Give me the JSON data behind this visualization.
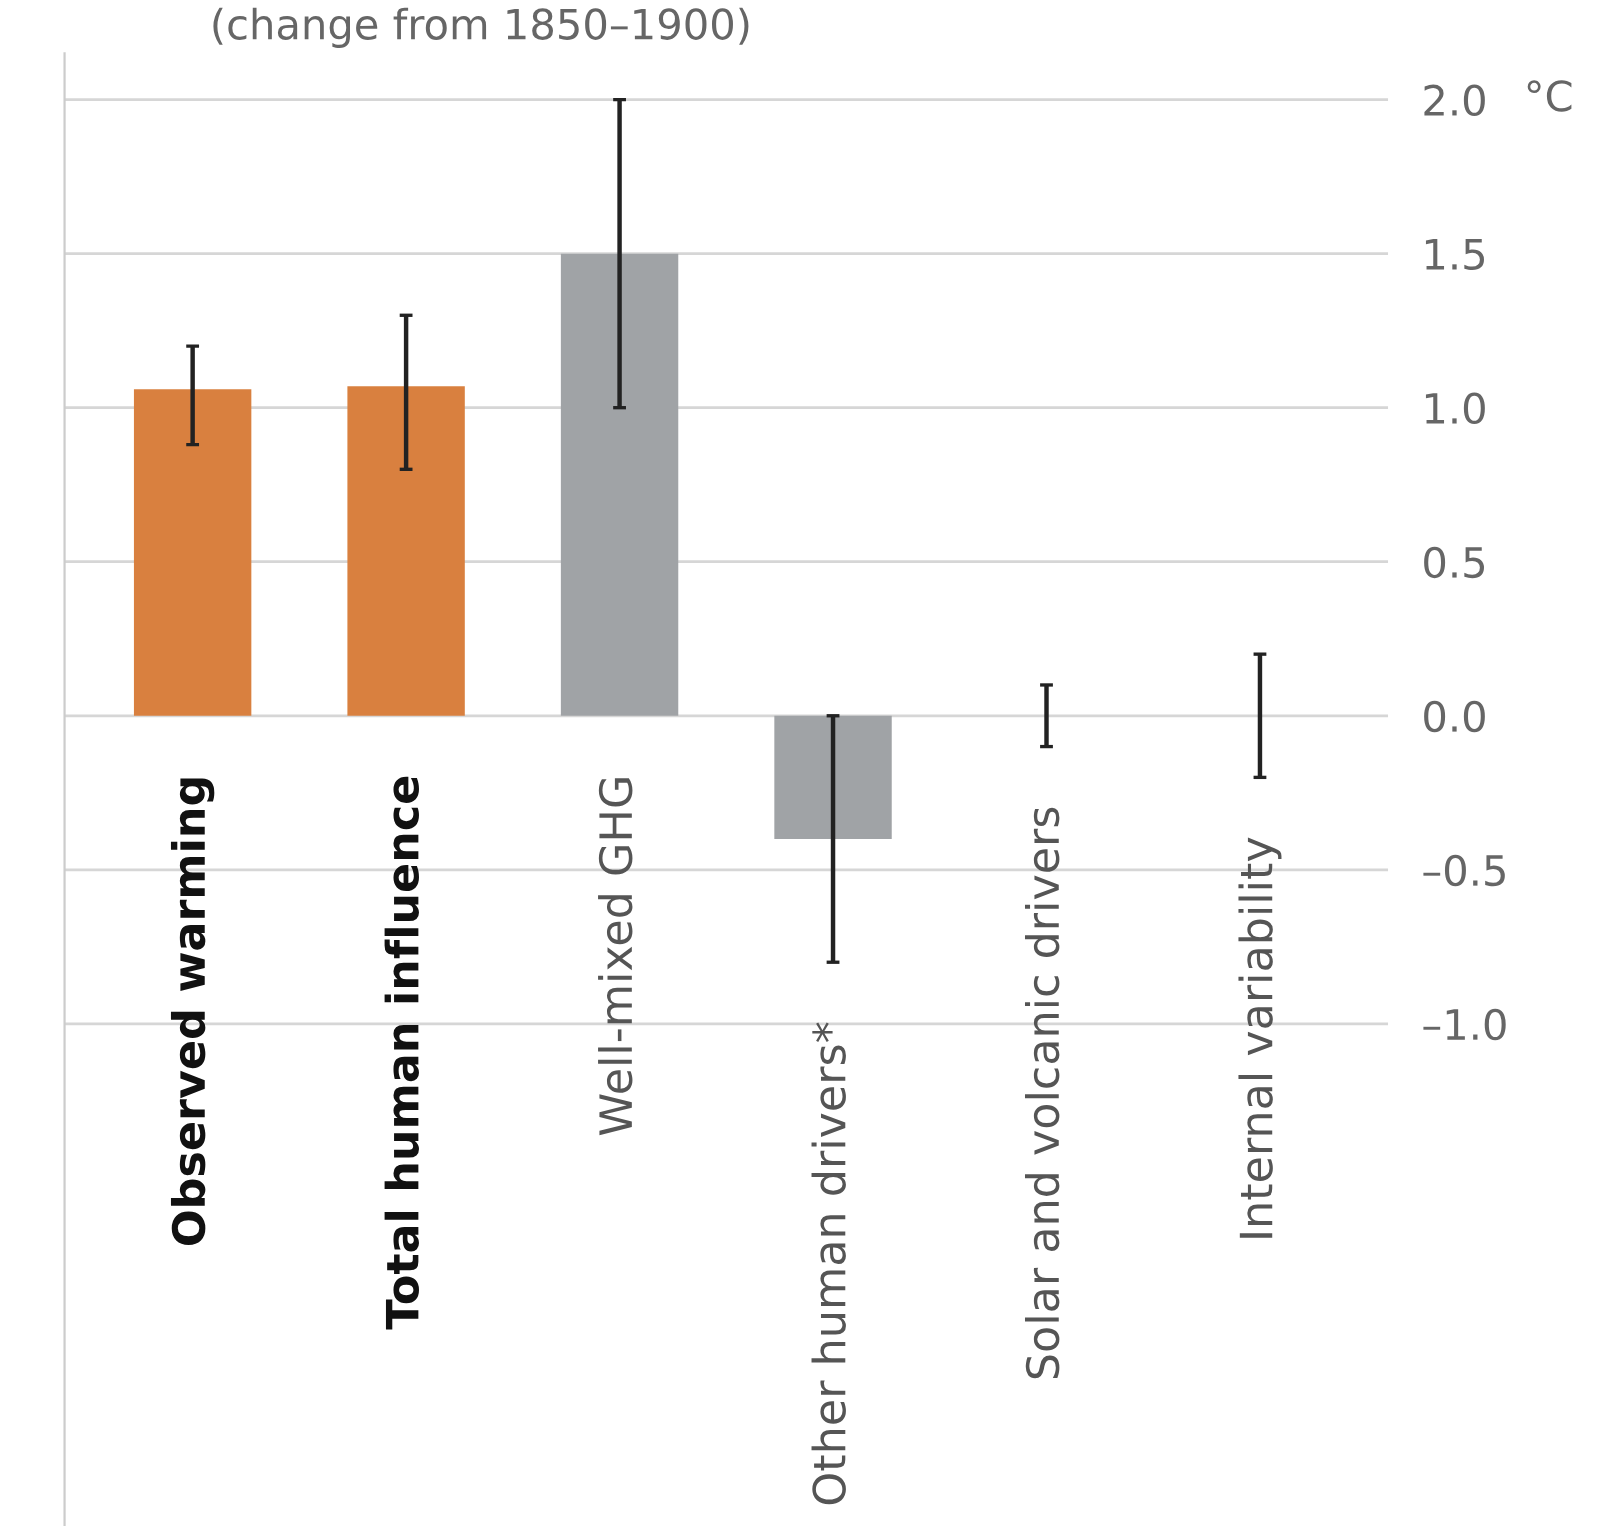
{
  "chart_data": {
    "type": "bar",
    "title": "(change from 1850–1900)",
    "ylabel": "°C",
    "categories": [
      "Observed warming",
      "Total human influence",
      "Well-mixed GHG",
      "Other human drivers*",
      "Solar and volcanic drivers",
      "Internal variability"
    ],
    "values": [
      1.06,
      1.07,
      1.5,
      -0.4,
      0.0,
      0.0
    ],
    "colors": [
      "#d9803f",
      "#d9803f",
      "#a0a3a6",
      "#a0a3a6",
      "#a0a3a6",
      "#a0a3a6"
    ],
    "errors": [
      [
        0.88,
        1.2
      ],
      [
        0.8,
        1.3
      ],
      [
        1.0,
        2.0
      ],
      [
        -0.8,
        0.0
      ],
      [
        -0.1,
        0.1
      ],
      [
        -0.2,
        0.2
      ]
    ],
    "ylim": [
      -2.63,
      2.15
    ],
    "yticks": [
      {
        "value": 2.0,
        "label": "2.0"
      },
      {
        "value": 1.5,
        "label": "1.5"
      },
      {
        "value": 1.0,
        "label": "1.0"
      },
      {
        "value": 0.5,
        "label": "0.5"
      },
      {
        "value": 0.0,
        "label": "0.0"
      },
      {
        "value": -0.5,
        "label": "–0.5"
      },
      {
        "value": -1.0,
        "label": "–1.0"
      }
    ],
    "grid": "y"
  }
}
